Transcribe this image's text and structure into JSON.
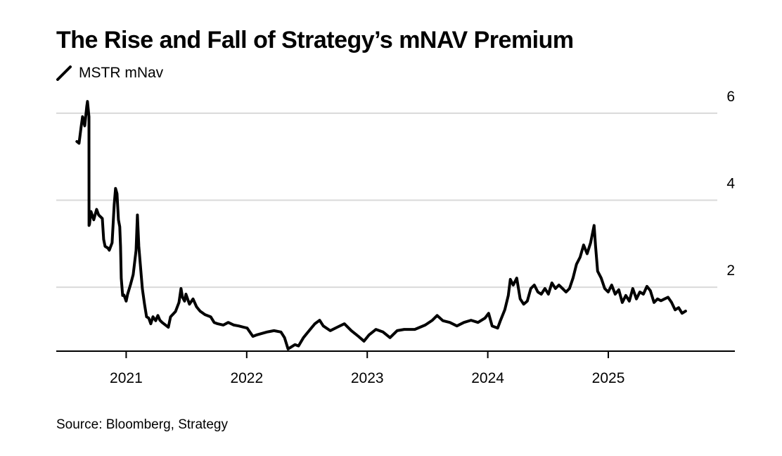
{
  "chart_data": {
    "type": "line",
    "title": "The Rise and Fall of Strategy’s mNAV Premium",
    "source": "Source: Bloomberg, Strategy",
    "xlabel": "",
    "ylabel": "",
    "xlim": [
      2020.42,
      2026.05
    ],
    "ylim": [
      0.53,
      6.5
    ],
    "grid": true,
    "legend_placement": "top-left",
    "x_ticks": [
      2021,
      2022,
      2023,
      2024,
      2025
    ],
    "x_tick_labels": [
      "2021",
      "2022",
      "2023",
      "2024",
      "2025"
    ],
    "y_ticks": [
      2,
      4,
      6
    ],
    "y_tick_labels": [
      "2",
      "4",
      "6"
    ],
    "series": [
      {
        "name": "MSTR mNav",
        "color": "#000000",
        "points": [
          [
            2020.591,
            5.35
          ],
          [
            2020.609,
            5.31
          ],
          [
            2020.626,
            5.68
          ],
          [
            2020.638,
            5.92
          ],
          [
            2020.656,
            5.71
          ],
          [
            2020.673,
            6.16
          ],
          [
            2020.679,
            6.27
          ],
          [
            2020.691,
            5.92
          ],
          [
            2020.692,
            3.42
          ],
          [
            2020.696,
            3.45
          ],
          [
            2020.708,
            3.74
          ],
          [
            2020.731,
            3.55
          ],
          [
            2020.755,
            3.79
          ],
          [
            2020.772,
            3.66
          ],
          [
            2020.802,
            3.58
          ],
          [
            2020.813,
            3.1
          ],
          [
            2020.825,
            2.94
          ],
          [
            2020.848,
            2.9
          ],
          [
            2020.86,
            2.85
          ],
          [
            2020.883,
            3.02
          ],
          [
            2020.901,
            3.9
          ],
          [
            2020.912,
            4.27
          ],
          [
            2020.924,
            4.15
          ],
          [
            2020.936,
            3.55
          ],
          [
            2020.947,
            3.39
          ],
          [
            2020.953,
            2.94
          ],
          [
            2020.959,
            2.21
          ],
          [
            2020.971,
            1.81
          ],
          [
            2020.982,
            1.82
          ],
          [
            2021.0,
            1.68
          ],
          [
            2021.012,
            1.84
          ],
          [
            2021.035,
            2.05
          ],
          [
            2021.058,
            2.29
          ],
          [
            2021.082,
            2.85
          ],
          [
            2021.093,
            3.66
          ],
          [
            2021.105,
            2.94
          ],
          [
            2021.117,
            2.53
          ],
          [
            2021.134,
            1.97
          ],
          [
            2021.152,
            1.61
          ],
          [
            2021.169,
            1.32
          ],
          [
            2021.187,
            1.29
          ],
          [
            2021.204,
            1.16
          ],
          [
            2021.222,
            1.32
          ],
          [
            2021.245,
            1.23
          ],
          [
            2021.263,
            1.35
          ],
          [
            2021.28,
            1.24
          ],
          [
            2021.298,
            1.19
          ],
          [
            2021.35,
            1.08
          ],
          [
            2021.368,
            1.32
          ],
          [
            2021.409,
            1.44
          ],
          [
            2021.438,
            1.65
          ],
          [
            2021.455,
            1.97
          ],
          [
            2021.467,
            1.77
          ],
          [
            2021.485,
            1.68
          ],
          [
            2021.496,
            1.84
          ],
          [
            2021.525,
            1.61
          ],
          [
            2021.555,
            1.73
          ],
          [
            2021.584,
            1.55
          ],
          [
            2021.613,
            1.45
          ],
          [
            2021.654,
            1.37
          ],
          [
            2021.701,
            1.32
          ],
          [
            2021.73,
            1.19
          ],
          [
            2021.759,
            1.16
          ],
          [
            2021.806,
            1.13
          ],
          [
            2021.847,
            1.19
          ],
          [
            2021.893,
            1.13
          ],
          [
            2021.934,
            1.11
          ],
          [
            2021.975,
            1.08
          ],
          [
            2022.004,
            1.06
          ],
          [
            2022.051,
            0.87
          ],
          [
            2022.08,
            0.9
          ],
          [
            2022.168,
            0.97
          ],
          [
            2022.226,
            1.0
          ],
          [
            2022.284,
            0.97
          ],
          [
            2022.314,
            0.84
          ],
          [
            2022.343,
            0.58
          ],
          [
            2022.401,
            0.68
          ],
          [
            2022.43,
            0.65
          ],
          [
            2022.471,
            0.84
          ],
          [
            2022.518,
            1.0
          ],
          [
            2022.565,
            1.16
          ],
          [
            2022.605,
            1.24
          ],
          [
            2022.635,
            1.11
          ],
          [
            2022.693,
            1.0
          ],
          [
            2022.751,
            1.08
          ],
          [
            2022.81,
            1.16
          ],
          [
            2022.868,
            1.0
          ],
          [
            2022.927,
            0.87
          ],
          [
            2022.973,
            0.76
          ],
          [
            2023.014,
            0.9
          ],
          [
            2023.072,
            1.03
          ],
          [
            2023.131,
            0.97
          ],
          [
            2023.189,
            0.84
          ],
          [
            2023.248,
            1.0
          ],
          [
            2023.306,
            1.03
          ],
          [
            2023.394,
            1.03
          ],
          [
            2023.481,
            1.13
          ],
          [
            2023.54,
            1.24
          ],
          [
            2023.58,
            1.35
          ],
          [
            2023.627,
            1.23
          ],
          [
            2023.685,
            1.19
          ],
          [
            2023.744,
            1.11
          ],
          [
            2023.802,
            1.19
          ],
          [
            2023.861,
            1.24
          ],
          [
            2023.919,
            1.19
          ],
          [
            2023.977,
            1.29
          ],
          [
            2024.007,
            1.4
          ],
          [
            2024.036,
            1.11
          ],
          [
            2024.082,
            1.06
          ],
          [
            2024.106,
            1.24
          ],
          [
            2024.141,
            1.48
          ],
          [
            2024.17,
            1.81
          ],
          [
            2024.187,
            2.18
          ],
          [
            2024.211,
            2.05
          ],
          [
            2024.24,
            2.21
          ],
          [
            2024.269,
            1.73
          ],
          [
            2024.298,
            1.61
          ],
          [
            2024.328,
            1.68
          ],
          [
            2024.357,
            1.97
          ],
          [
            2024.386,
            2.05
          ],
          [
            2024.415,
            1.89
          ],
          [
            2024.444,
            1.84
          ],
          [
            2024.474,
            1.97
          ],
          [
            2024.503,
            1.84
          ],
          [
            2024.532,
            2.1
          ],
          [
            2024.561,
            1.97
          ],
          [
            2024.59,
            2.05
          ],
          [
            2024.62,
            1.97
          ],
          [
            2024.649,
            1.89
          ],
          [
            2024.678,
            1.97
          ],
          [
            2024.707,
            2.21
          ],
          [
            2024.736,
            2.53
          ],
          [
            2024.766,
            2.69
          ],
          [
            2024.795,
            2.97
          ],
          [
            2024.824,
            2.77
          ],
          [
            2024.853,
            3.02
          ],
          [
            2024.882,
            3.42
          ],
          [
            2024.894,
            2.94
          ],
          [
            2024.911,
            2.37
          ],
          [
            2024.941,
            2.21
          ],
          [
            2024.97,
            1.97
          ],
          [
            2024.999,
            1.89
          ],
          [
            2025.028,
            2.05
          ],
          [
            2025.057,
            1.84
          ],
          [
            2025.087,
            1.94
          ],
          [
            2025.116,
            1.65
          ],
          [
            2025.145,
            1.81
          ],
          [
            2025.174,
            1.68
          ],
          [
            2025.203,
            1.97
          ],
          [
            2025.233,
            1.73
          ],
          [
            2025.262,
            1.89
          ],
          [
            2025.291,
            1.84
          ],
          [
            2025.32,
            2.02
          ],
          [
            2025.349,
            1.92
          ],
          [
            2025.379,
            1.65
          ],
          [
            2025.408,
            1.73
          ],
          [
            2025.437,
            1.69
          ],
          [
            2025.466,
            1.73
          ],
          [
            2025.495,
            1.77
          ],
          [
            2025.525,
            1.65
          ],
          [
            2025.554,
            1.48
          ],
          [
            2025.583,
            1.53
          ],
          [
            2025.612,
            1.4
          ],
          [
            2025.641,
            1.45
          ]
        ]
      }
    ]
  },
  "colors": {
    "line": "#000000",
    "grid": "#d9d9d9",
    "axis": "#000000"
  }
}
